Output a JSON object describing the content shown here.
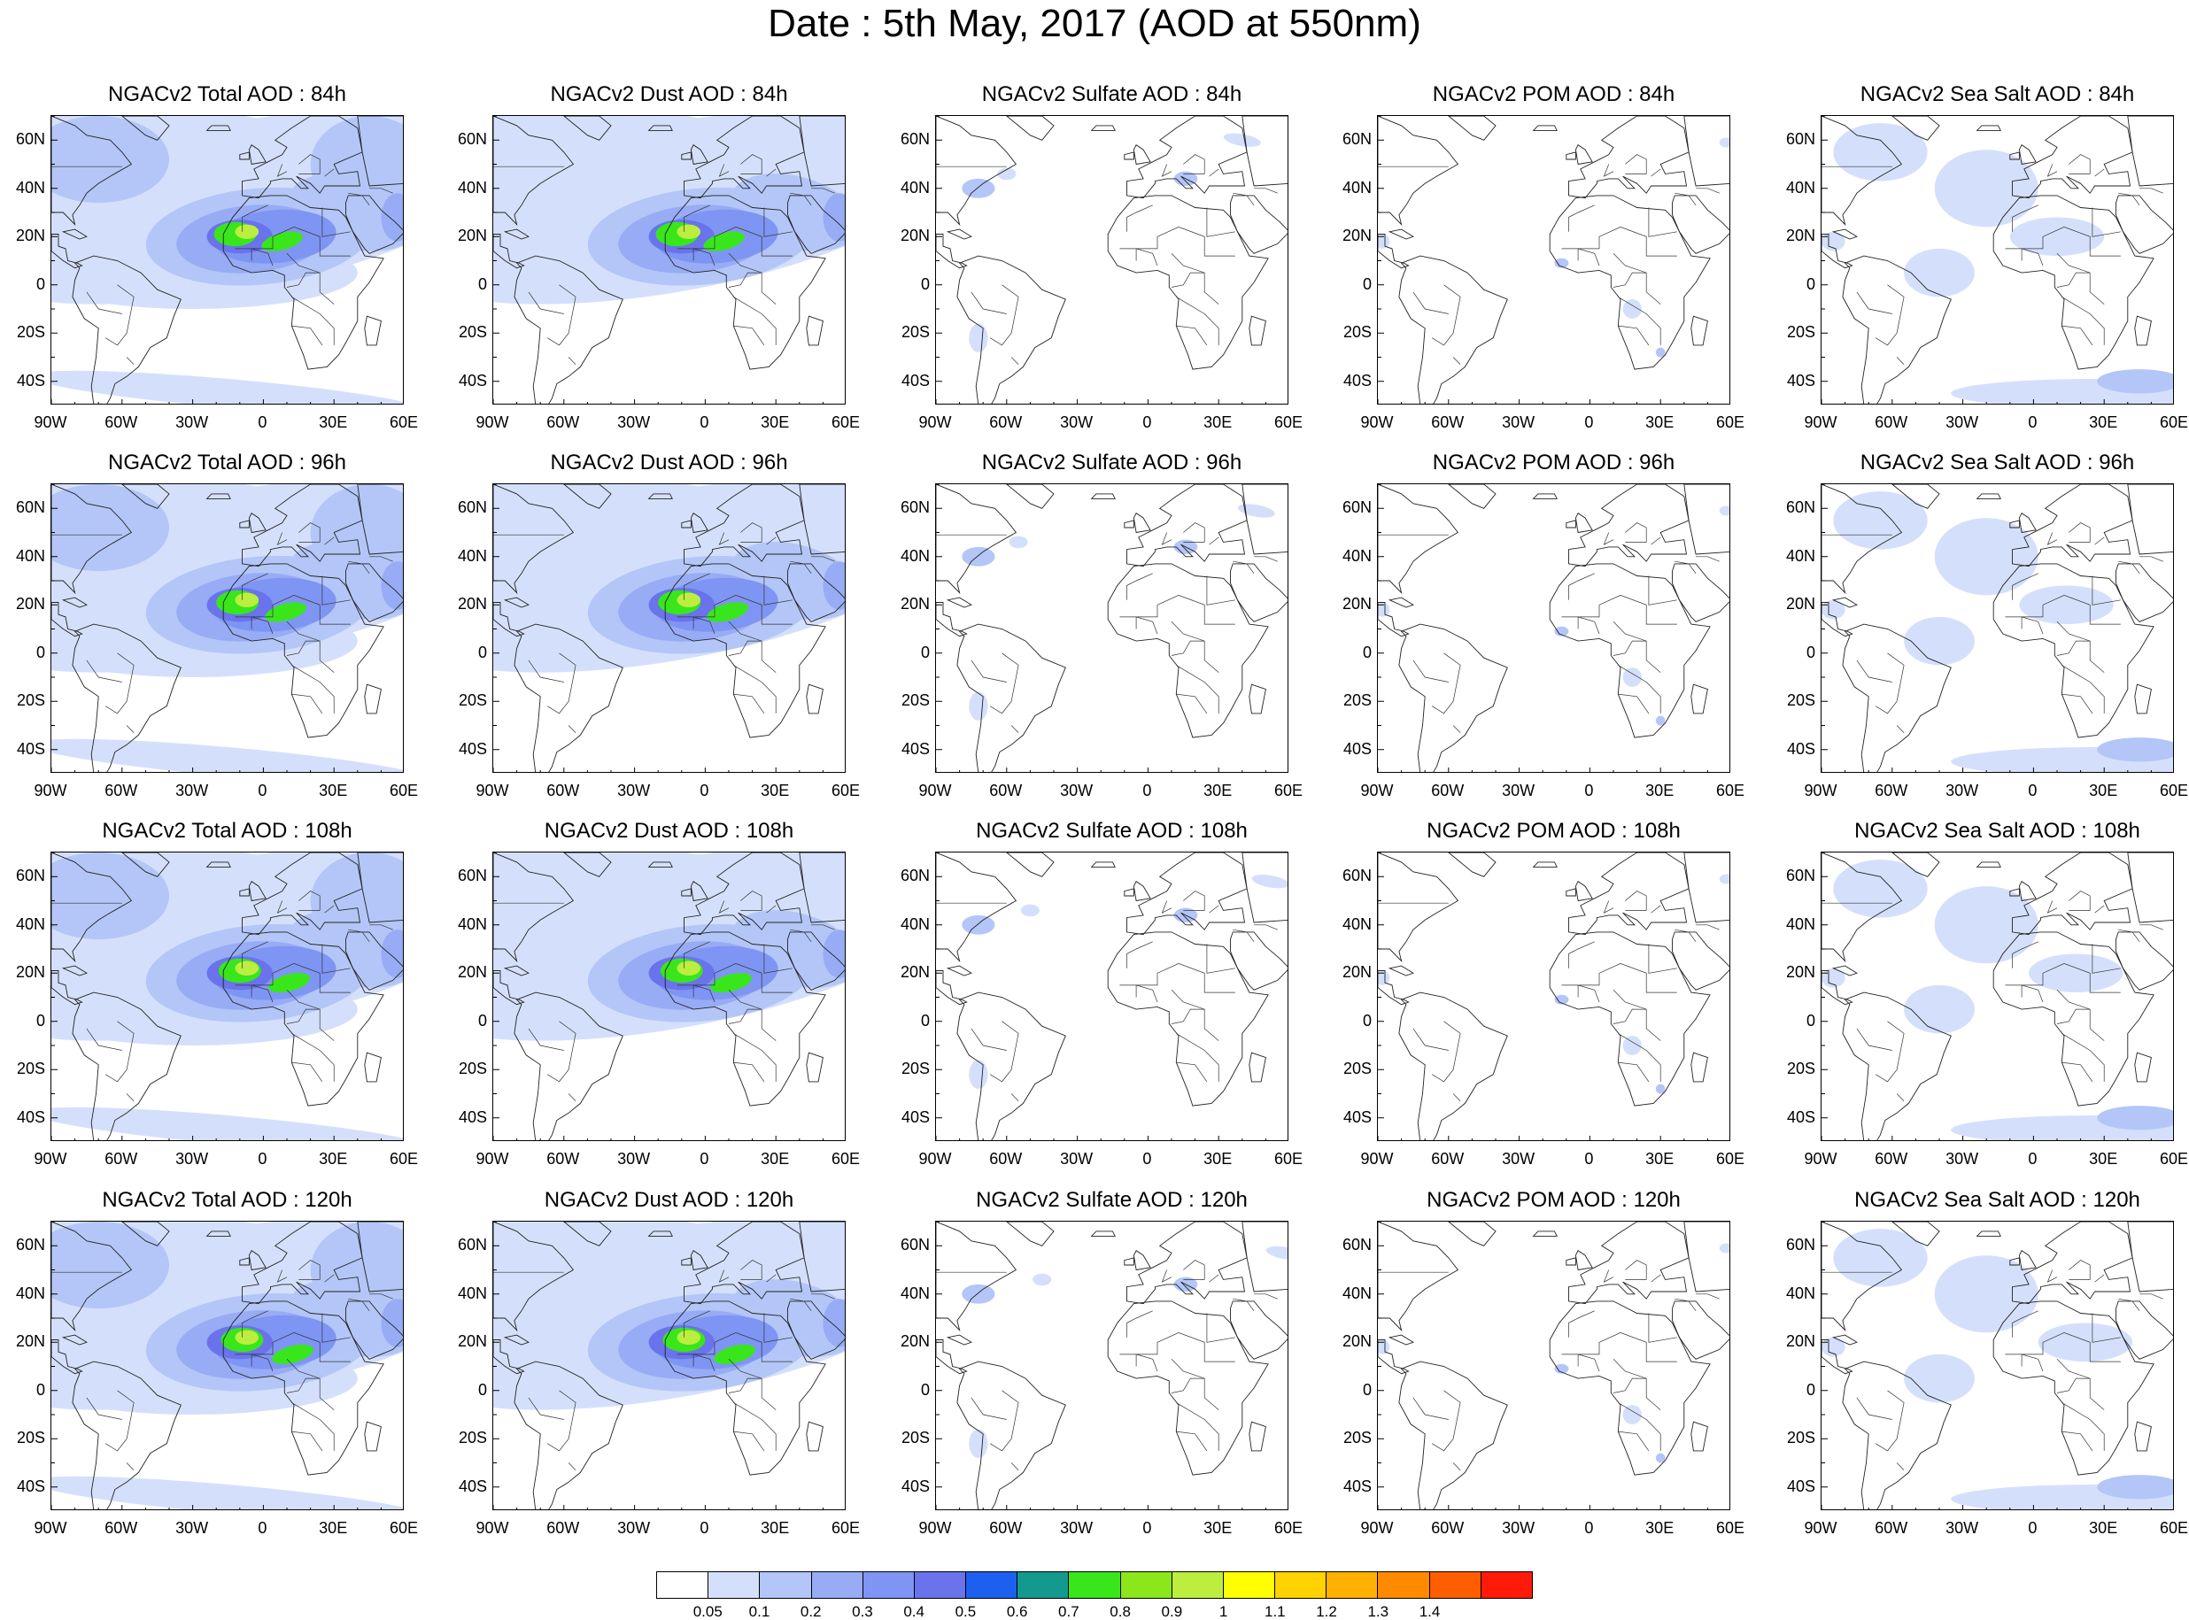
{
  "title": "Date : 5th May, 2017 (AOD at 550nm)",
  "lat_labels": [
    "60N",
    "40N",
    "20N",
    "0",
    "20S",
    "40S"
  ],
  "lon_labels": [
    "90W",
    "60W",
    "30W",
    "0",
    "30E",
    "60E"
  ],
  "map_extent": {
    "lon": [
      -90,
      60
    ],
    "lat": [
      -50,
      70
    ]
  },
  "panels": [
    {
      "title": "NGACv2 Total AOD : 84h",
      "species": "total",
      "hour": 84
    },
    {
      "title": "NGACv2 Dust AOD : 84h",
      "species": "dust",
      "hour": 84
    },
    {
      "title": "NGACv2 Sulfate AOD : 84h",
      "species": "sulfate",
      "hour": 84
    },
    {
      "title": "NGACv2 POM AOD : 84h",
      "species": "pom",
      "hour": 84
    },
    {
      "title": "NGACv2 Sea Salt AOD : 84h",
      "species": "seasalt",
      "hour": 84
    },
    {
      "title": "NGACv2 Total AOD : 96h",
      "species": "total",
      "hour": 96
    },
    {
      "title": "NGACv2 Dust AOD : 96h",
      "species": "dust",
      "hour": 96
    },
    {
      "title": "NGACv2 Sulfate AOD : 96h",
      "species": "sulfate",
      "hour": 96
    },
    {
      "title": "NGACv2 POM AOD : 96h",
      "species": "pom",
      "hour": 96
    },
    {
      "title": "NGACv2 Sea Salt AOD : 96h",
      "species": "seasalt",
      "hour": 96
    },
    {
      "title": "NGACv2 Total AOD : 108h",
      "species": "total",
      "hour": 108
    },
    {
      "title": "NGACv2 Dust AOD : 108h",
      "species": "dust",
      "hour": 108
    },
    {
      "title": "NGACv2 Sulfate AOD : 108h",
      "species": "sulfate",
      "hour": 108
    },
    {
      "title": "NGACv2 POM AOD : 108h",
      "species": "pom",
      "hour": 108
    },
    {
      "title": "NGACv2 Sea Salt AOD : 108h",
      "species": "seasalt",
      "hour": 108
    },
    {
      "title": "NGACv2 Total AOD : 120h",
      "species": "total",
      "hour": 120
    },
    {
      "title": "NGACv2 Dust AOD : 120h",
      "species": "dust",
      "hour": 120
    },
    {
      "title": "NGACv2 Sulfate AOD : 120h",
      "species": "sulfate",
      "hour": 120
    },
    {
      "title": "NGACv2 POM AOD : 120h",
      "species": "pom",
      "hour": 120
    },
    {
      "title": "NGACv2 Sea Salt  AOD : 120h",
      "species": "seasalt",
      "hour": 120
    }
  ],
  "colorbar": {
    "colors": [
      "#ffffff",
      "#d4e0fb",
      "#b3c6f7",
      "#97acf5",
      "#7f95f3",
      "#6a73ec",
      "#1d60f0",
      "#14998f",
      "#38e61b",
      "#8be61b",
      "#bcee3f",
      "#ffff00",
      "#ffd200",
      "#ffb000",
      "#ff8a00",
      "#ff5e00",
      "#ff1a0a"
    ],
    "labels": [
      "0.05",
      "0.1",
      "0.2",
      "0.3",
      "0.4",
      "0.5",
      "0.6",
      "0.7",
      "0.8",
      "0.9",
      "1",
      "1.1",
      "1.2",
      "1.3",
      "1.4"
    ]
  }
}
